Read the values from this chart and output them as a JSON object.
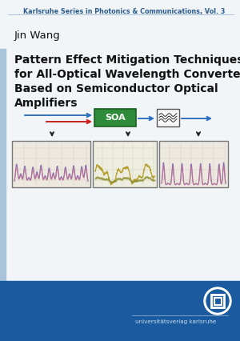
{
  "bg_color": "#f2f5f8",
  "left_stripe_color": "#aac4dc",
  "top_text": "Karlsruhe Series in Photonics & Communications, Vol. 3",
  "top_text_color": "#2a5a8c",
  "author": "Jin Wang",
  "title_line1": "Pattern Effect Mitigation Techniques",
  "title_line2": "for All-Optical Wavelength Converters",
  "title_line3": "Based on Semiconductor Optical",
  "title_line4": "Amplifiers",
  "bottom_bg_color": "#1a5a9e",
  "bottom_text": "universitätsverlag karlsruhe",
  "bottom_text_color": "#c8ddf0",
  "soa_box_color": "#2e8b3a",
  "soa_text_color": "#ffffff",
  "arrow_color_blue": "#3070c0",
  "arrow_color_red": "#cc2020"
}
